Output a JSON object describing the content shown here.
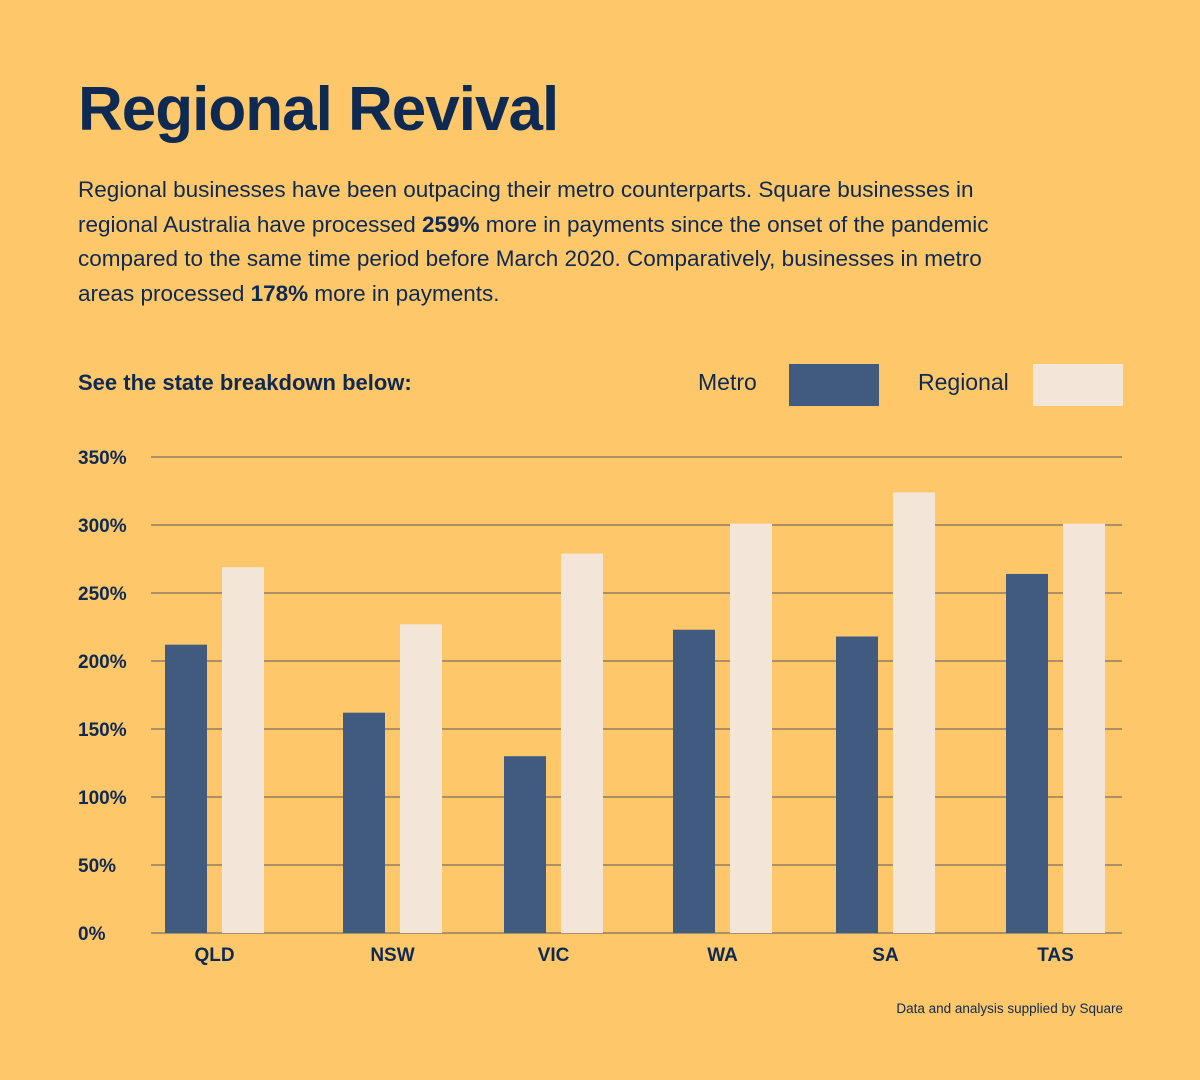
{
  "title": "Regional Revival",
  "intro": {
    "p1": "Regional businesses have been outpacing their metro counterparts. Square businesses in regional Australia have processed ",
    "b1": "259%",
    "p2": " more in payments since the onset of the pandemic compared to the same time period before March 2020. Comparatively, businesses in metro areas processed ",
    "b2": "178%",
    "p3": " more in payments."
  },
  "subheading": "See the state breakdown below:",
  "source": "Data and analysis supplied by Square",
  "colors": {
    "background": "#FDC76A",
    "text": "#0E2A52",
    "metro": "#415A80",
    "regional": "#F3E5D8",
    "grid": "#5A5A5A"
  },
  "chart_data": {
    "type": "bar",
    "categories": [
      "QLD",
      "NSW",
      "VIC",
      "WA",
      "SA",
      "TAS"
    ],
    "series": [
      {
        "name": "Metro",
        "values": [
          212,
          162,
          130,
          223,
          218,
          264
        ]
      },
      {
        "name": "Regional",
        "values": [
          269,
          227,
          279,
          301,
          324,
          301
        ]
      }
    ],
    "ylim": [
      0,
      350
    ],
    "yticks": [
      0,
      50,
      100,
      150,
      200,
      250,
      300,
      350
    ],
    "ytick_labels": [
      "0%",
      "50%",
      "100%",
      "150%",
      "200%",
      "250%",
      "300%",
      "350%"
    ],
    "grid": true,
    "legend": "top-right",
    "title": "",
    "xlabel": "",
    "ylabel": ""
  }
}
